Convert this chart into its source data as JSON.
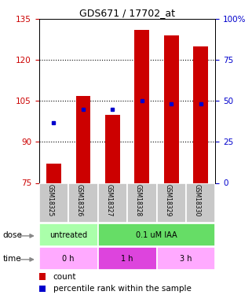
{
  "title": "GDS671 / 17702_at",
  "samples": [
    "GSM18325",
    "GSM18326",
    "GSM18327",
    "GSM18328",
    "GSM18329",
    "GSM18330"
  ],
  "bar_values": [
    82,
    107,
    100,
    131,
    129,
    125
  ],
  "blue_dot_values": [
    97,
    102,
    102,
    105,
    104,
    104
  ],
  "ylim_left": [
    75,
    135
  ],
  "ylim_right": [
    0,
    100
  ],
  "yticks_left": [
    75,
    90,
    105,
    120,
    135
  ],
  "yticks_right": [
    0,
    25,
    50,
    75,
    100
  ],
  "bar_color": "#cc0000",
  "dot_color": "#0000cc",
  "bar_bottom": 75,
  "dose_labels": [
    {
      "text": "untreated",
      "span": [
        0,
        2
      ],
      "color": "#aaffaa"
    },
    {
      "text": "0.1 uM IAA",
      "span": [
        2,
        6
      ],
      "color": "#66dd66"
    }
  ],
  "time_labels": [
    {
      "text": "0 h",
      "span": [
        0,
        2
      ],
      "color": "#ffaaff"
    },
    {
      "text": "1 h",
      "span": [
        2,
        4
      ],
      "color": "#dd44dd"
    },
    {
      "text": "3 h",
      "span": [
        4,
        6
      ],
      "color": "#ffaaff"
    }
  ],
  "legend_count_color": "#cc0000",
  "legend_dot_color": "#0000cc",
  "left_tick_color": "#cc0000",
  "right_tick_color": "#0000cc",
  "sample_bg_color": "#c8c8c8",
  "grid_yticks": [
    90,
    105,
    120
  ],
  "bar_width": 0.5
}
